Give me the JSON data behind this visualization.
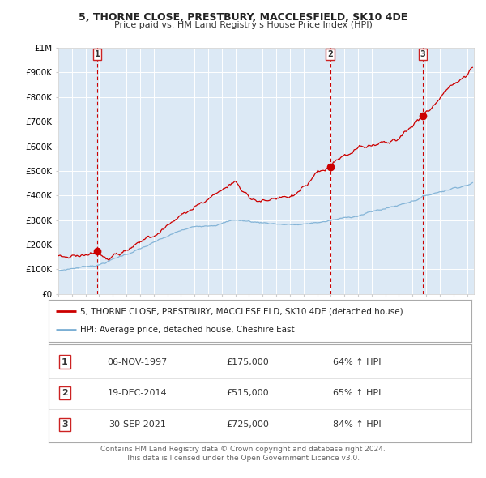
{
  "title_line1": "5, THORNE CLOSE, PRESTBURY, MACCLESFIELD, SK10 4DE",
  "title_line2": "Price paid vs. HM Land Registry's House Price Index (HPI)",
  "background_color": "#dce9f5",
  "plot_bg_color": "#dce9f5",
  "fig_bg_color": "#ffffff",
  "red_line_label": "5, THORNE CLOSE, PRESTBURY, MACCLESFIELD, SK10 4DE (detached house)",
  "blue_line_label": "HPI: Average price, detached house, Cheshire East",
  "transactions": [
    {
      "num": 1,
      "date": "06-NOV-1997",
      "price": 175000,
      "pct": "64%",
      "dir": "↑",
      "x": 1997.85
    },
    {
      "num": 2,
      "date": "19-DEC-2014",
      "price": 515000,
      "pct": "65%",
      "dir": "↑",
      "x": 2014.96
    },
    {
      "num": 3,
      "date": "30-SEP-2021",
      "price": 725000,
      "pct": "84%",
      "dir": "↑",
      "x": 2021.75
    }
  ],
  "xlim": [
    1995.0,
    2025.5
  ],
  "ylim": [
    0,
    1000000
  ],
  "yticks": [
    0,
    100000,
    200000,
    300000,
    400000,
    500000,
    600000,
    700000,
    800000,
    900000,
    1000000
  ],
  "ytick_labels": [
    "£0",
    "£100K",
    "£200K",
    "£300K",
    "£400K",
    "£500K",
    "£600K",
    "£700K",
    "£800K",
    "£900K",
    "£1M"
  ],
  "footer_line1": "Contains HM Land Registry data © Crown copyright and database right 2024.",
  "footer_line2": "This data is licensed under the Open Government Licence v3.0.",
  "red_color": "#cc0000",
  "blue_color": "#7bafd4",
  "dashed_vline_color": "#cc0000",
  "grid_color": "#ffffff",
  "spine_color": "#cccccc"
}
